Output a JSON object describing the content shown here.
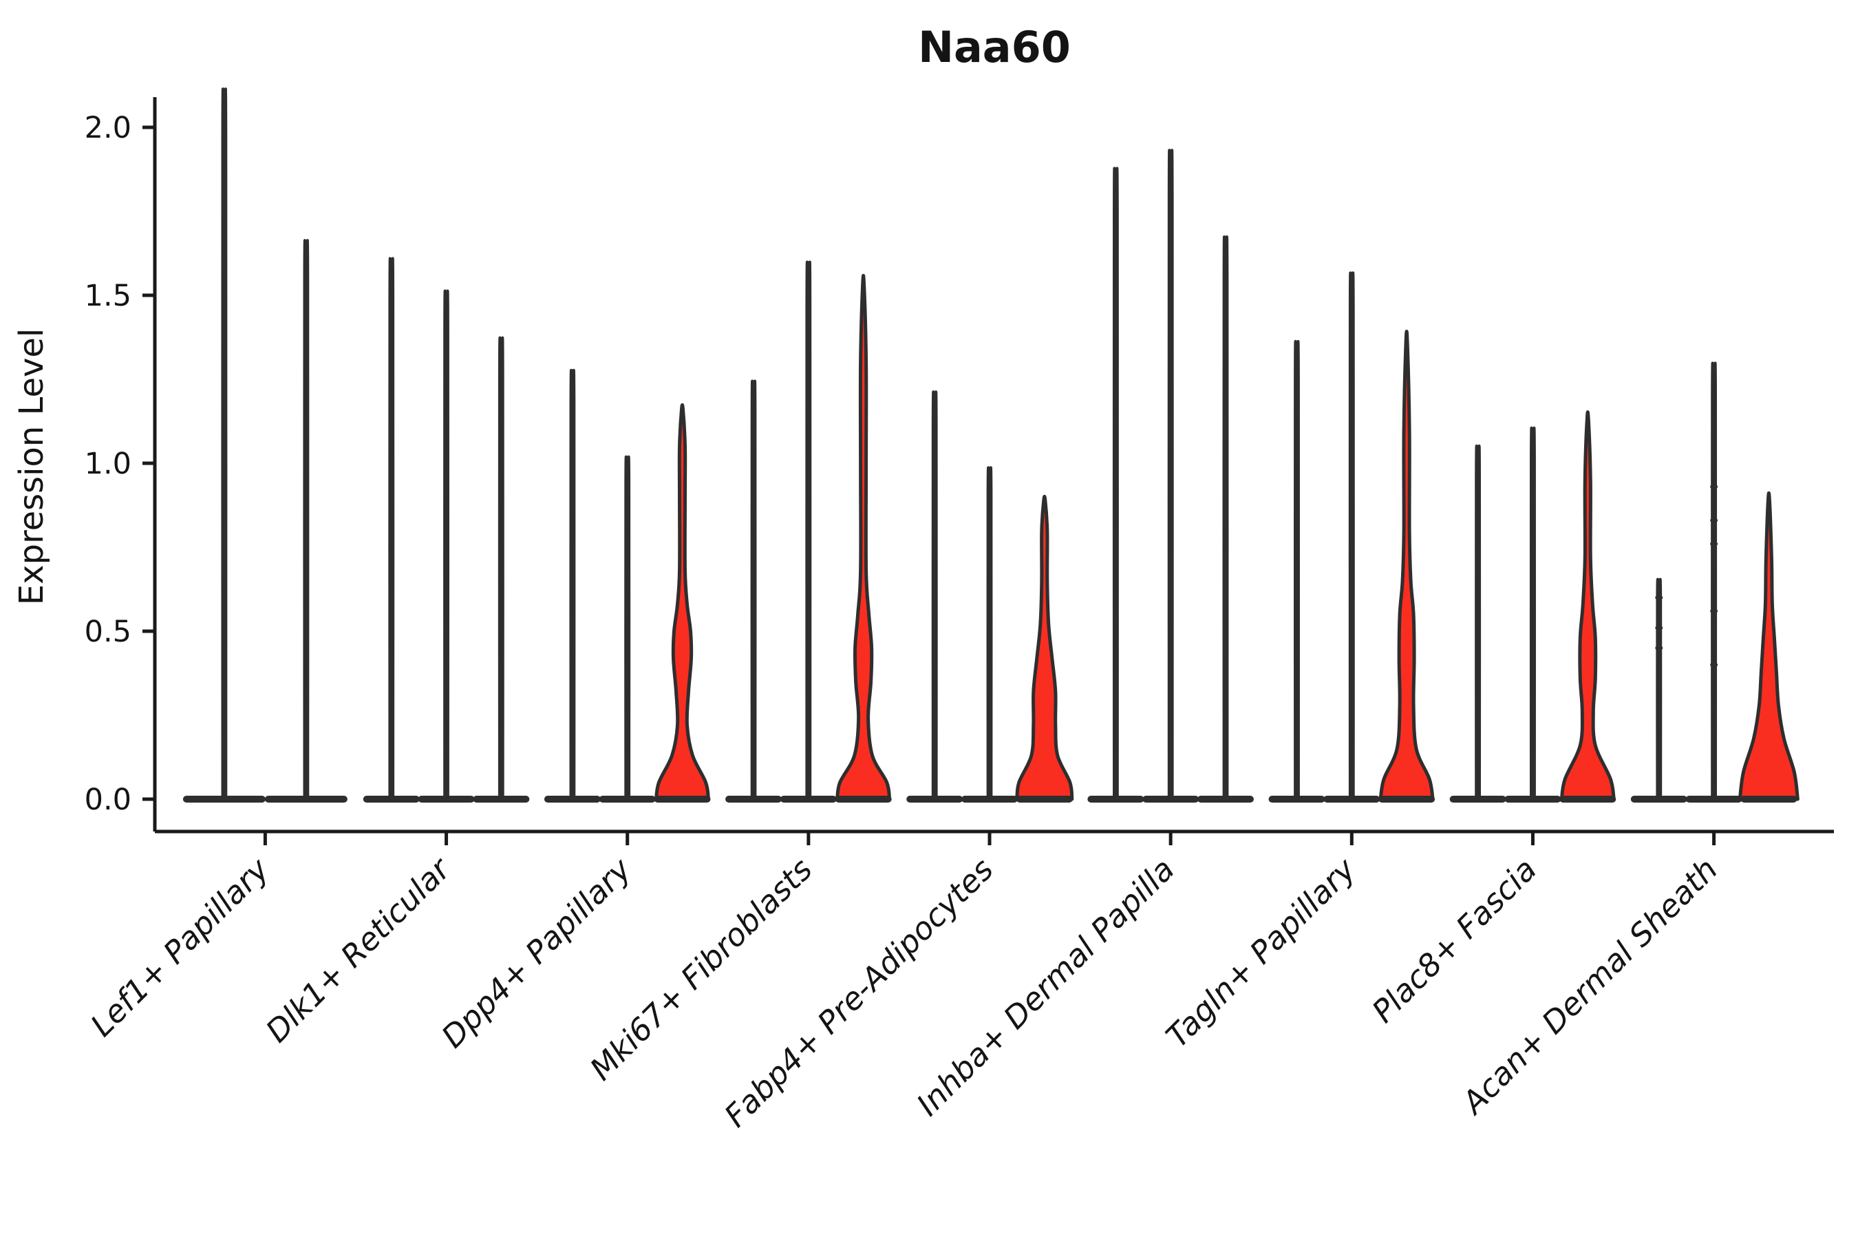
{
  "chart_data": {
    "type": "violin",
    "title": "Naa60",
    "ylabel": "Expression Level",
    "xlabel": "",
    "ylim": [
      0,
      2.09
    ],
    "yticks": [
      0,
      0.5,
      1.0,
      1.5,
      2.0
    ],
    "ytick_labels": [
      "0.0",
      "0.5",
      "1.0",
      "1.5",
      "2.0"
    ],
    "grid": false,
    "legend_position": "none",
    "fill_color": "#f92e21",
    "outline_color": "#2e2e2e",
    "axis_color": "#1a1a1a",
    "background_color": "#ffffff",
    "categories": [
      "Lef1+ Papillary",
      "Dlk1+ Reticular",
      "Dpp4+ Papillary",
      "Mki67+ Fibroblasts",
      "Fabp4+ Pre-Adipocytes",
      "Inhba+ Dermal Papilla",
      "Tagln+ Papillary",
      "Plac8+ Fascia",
      "Acan+ Dermal Sheath"
    ],
    "groups": [
      {
        "label": "Lef1+ Papillary",
        "violins": [
          {
            "peak": 1.99,
            "expressed": false
          },
          {
            "peak": 1.57,
            "expressed": false
          }
        ]
      },
      {
        "label": "Dlk1+ Reticular",
        "violins": [
          {
            "peak": 1.52,
            "expressed": false
          },
          {
            "peak": 1.43,
            "expressed": false
          },
          {
            "peak": 1.3,
            "expressed": false
          }
        ]
      },
      {
        "label": "Dpp4+ Papillary",
        "violins": [
          {
            "peak": 1.21,
            "expressed": false
          },
          {
            "peak": 0.97,
            "expressed": false
          },
          {
            "peak": 1.16,
            "expressed": true,
            "profile": [
              [
                0,
                38
              ],
              [
                0.05,
                34
              ],
              [
                0.13,
                15
              ],
              [
                0.22,
                7
              ],
              [
                0.32,
                9
              ],
              [
                0.42,
                13
              ],
              [
                0.5,
                12
              ],
              [
                0.58,
                7
              ],
              [
                0.68,
                4
              ],
              [
                0.9,
                4
              ],
              [
                1.05,
                4
              ],
              [
                1.16,
                1
              ]
            ]
          }
        ]
      },
      {
        "label": "Mki67+ Fibroblasts",
        "violins": [
          {
            "peak": 1.18,
            "expressed": false
          },
          {
            "peak": 1.51,
            "expressed": false
          },
          {
            "peak": 1.53,
            "expressed": true,
            "profile": [
              [
                0,
                38
              ],
              [
                0.05,
                34
              ],
              [
                0.13,
                13
              ],
              [
                0.24,
                7
              ],
              [
                0.35,
                11
              ],
              [
                0.45,
                12
              ],
              [
                0.55,
                8
              ],
              [
                0.68,
                4
              ],
              [
                1.0,
                4
              ],
              [
                1.3,
                4
              ],
              [
                1.53,
                1
              ]
            ]
          }
        ]
      },
      {
        "label": "Fabp4+ Pre-Adipocytes",
        "violins": [
          {
            "peak": 1.15,
            "expressed": false
          },
          {
            "peak": 0.94,
            "expressed": false
          },
          {
            "peak": 0.89,
            "expressed": true,
            "profile": [
              [
                0,
                40
              ],
              [
                0.05,
                37
              ],
              [
                0.13,
                19
              ],
              [
                0.22,
                16
              ],
              [
                0.32,
                16
              ],
              [
                0.42,
                11
              ],
              [
                0.52,
                6
              ],
              [
                0.65,
                4
              ],
              [
                0.8,
                4
              ],
              [
                0.89,
                1
              ]
            ]
          }
        ]
      },
      {
        "label": "Inhba+ Dermal Papilla",
        "violins": [
          {
            "peak": 1.77,
            "expressed": false
          },
          {
            "peak": 1.82,
            "expressed": false
          },
          {
            "peak": 1.58,
            "expressed": false
          }
        ]
      },
      {
        "label": "Tagln+ Papillary",
        "violins": [
          {
            "peak": 1.29,
            "expressed": false
          },
          {
            "peak": 1.48,
            "expressed": false
          },
          {
            "peak": 1.36,
            "expressed": true,
            "profile": [
              [
                0,
                38
              ],
              [
                0.06,
                33
              ],
              [
                0.15,
                14
              ],
              [
                0.28,
                10
              ],
              [
                0.42,
                11
              ],
              [
                0.55,
                10
              ],
              [
                0.65,
                6
              ],
              [
                0.8,
                4
              ],
              [
                1.1,
                4
              ],
              [
                1.36,
                1
              ]
            ]
          }
        ]
      },
      {
        "label": "Plac8+ Fascia",
        "violins": [
          {
            "peak": 1.0,
            "expressed": false
          },
          {
            "peak": 1.05,
            "expressed": false
          },
          {
            "peak": 1.13,
            "expressed": true,
            "profile": [
              [
                0,
                38
              ],
              [
                0.06,
                33
              ],
              [
                0.16,
                11
              ],
              [
                0.26,
                8
              ],
              [
                0.36,
                11
              ],
              [
                0.48,
                11
              ],
              [
                0.58,
                7
              ],
              [
                0.72,
                4
              ],
              [
                0.95,
                4
              ],
              [
                1.13,
                1
              ]
            ]
          }
        ]
      },
      {
        "label": "Acan+ Dermal Sheath",
        "violins": [
          {
            "peak": 0.63,
            "expressed": false,
            "points": [
              0.6,
              0.51,
              0.45
            ]
          },
          {
            "peak": 1.23,
            "expressed": false,
            "points": [
              0.93,
              0.83,
              0.76,
              0.56,
              0.4
            ]
          },
          {
            "peak": 0.89,
            "expressed": true,
            "profile": [
              [
                0,
                42
              ],
              [
                0.08,
                37
              ],
              [
                0.18,
                22
              ],
              [
                0.28,
                14
              ],
              [
                0.38,
                11
              ],
              [
                0.48,
                8
              ],
              [
                0.58,
                5
              ],
              [
                0.72,
                4
              ],
              [
                0.89,
                1
              ]
            ]
          }
        ]
      }
    ]
  }
}
